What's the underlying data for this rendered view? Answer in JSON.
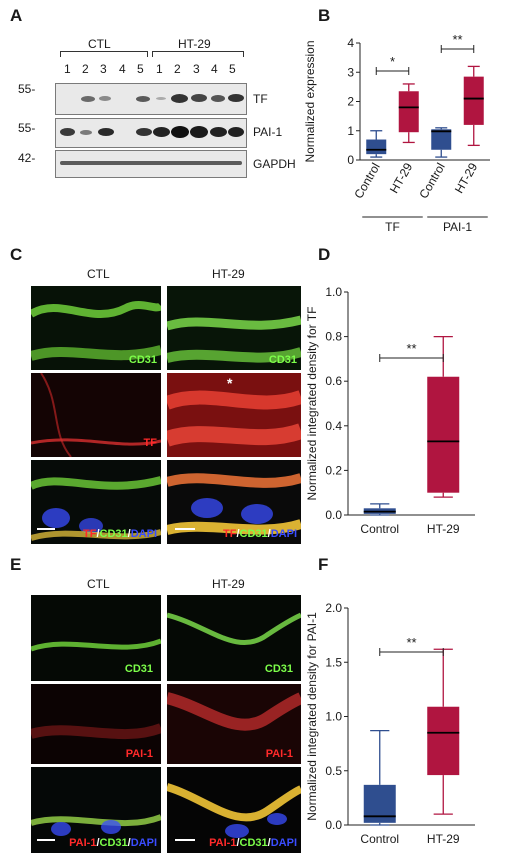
{
  "panels": {
    "A": "A",
    "B": "B",
    "C": "C",
    "D": "D",
    "E": "E",
    "F": "F"
  },
  "blot": {
    "group_ctl": "CTL",
    "group_ht": "HT-29",
    "lanes": [
      "1",
      "2",
      "3",
      "4",
      "5",
      "1",
      "2",
      "3",
      "4",
      "5"
    ],
    "rows": [
      {
        "mw": "55-",
        "label": "TF"
      },
      {
        "mw": "55-",
        "label": "PAI-1"
      },
      {
        "mw": "42-",
        "label": "GAPDH"
      }
    ]
  },
  "micro": {
    "col_ctl": "CTL",
    "col_ht": "HT-29",
    "cd31": "CD31",
    "tf": "TF",
    "merge_tf": [
      "TF",
      "/",
      "CD31",
      "/",
      "DAPI"
    ],
    "pai": "PAI-1",
    "merge_pai": [
      "PAI-1",
      "/",
      "CD31",
      "/",
      "DAPI"
    ],
    "asterisk": "*",
    "colors": {
      "green": "#7dff4a",
      "red": "#ff2a2a",
      "blue": "#3a4dff"
    }
  },
  "chart_data": [
    {
      "type": "box",
      "panel": "B",
      "ylabel": "Normalized expression",
      "ylim": [
        0,
        4
      ],
      "yticks": [
        "0",
        "1",
        "2",
        "3",
        "4"
      ],
      "categories": [
        "Control",
        "HT-29",
        "Control",
        "HT-29"
      ],
      "groups": [
        {
          "name": "TF",
          "span": [
            0,
            1
          ]
        },
        {
          "name": "PAI-1",
          "span": [
            2,
            3
          ]
        }
      ],
      "boxes": [
        {
          "min": 0.1,
          "q1": 0.2,
          "median": 0.35,
          "q3": 0.7,
          "max": 1.0,
          "color": "#2f4e8f"
        },
        {
          "min": 0.6,
          "q1": 0.95,
          "median": 1.8,
          "q3": 2.35,
          "max": 2.6,
          "color": "#b01540"
        },
        {
          "min": 0.1,
          "q1": 0.35,
          "median": 0.98,
          "q3": 1.05,
          "max": 1.1,
          "color": "#2f4e8f"
        },
        {
          "min": 0.5,
          "q1": 1.2,
          "median": 2.1,
          "q3": 2.85,
          "max": 3.2,
          "color": "#b01540"
        }
      ],
      "significance": [
        {
          "from": 0,
          "to": 1,
          "label": "*"
        },
        {
          "from": 2,
          "to": 3,
          "label": "**"
        }
      ]
    },
    {
      "type": "box",
      "panel": "D",
      "ylabel": "Normalized integrated density for TF",
      "ylim": [
        0,
        1.0
      ],
      "yticks": [
        "0.0",
        "0.2",
        "0.4",
        "0.6",
        "0.8",
        "1.0"
      ],
      "categories": [
        "Control",
        "HT-29"
      ],
      "boxes": [
        {
          "min": 0.0,
          "q1": 0.005,
          "median": 0.015,
          "q3": 0.03,
          "max": 0.05,
          "color": "#2f4e8f"
        },
        {
          "min": 0.08,
          "q1": 0.1,
          "median": 0.33,
          "q3": 0.62,
          "max": 0.8,
          "color": "#b01540"
        }
      ],
      "significance": [
        {
          "from": 0,
          "to": 1,
          "label": "**"
        }
      ]
    },
    {
      "type": "box",
      "panel": "F",
      "ylabel": "Normalized integrated density for PAI-1",
      "ylim": [
        0,
        2.0
      ],
      "yticks": [
        "0.0",
        "0.5",
        "1.0",
        "1.5",
        "2.0"
      ],
      "categories": [
        "Control",
        "HT-29"
      ],
      "boxes": [
        {
          "min": 0.0,
          "q1": 0.02,
          "median": 0.08,
          "q3": 0.37,
          "max": 0.87,
          "color": "#2f4e8f"
        },
        {
          "min": 0.1,
          "q1": 0.46,
          "median": 0.85,
          "q3": 1.09,
          "max": 1.62,
          "color": "#b01540"
        }
      ],
      "significance": [
        {
          "from": 0,
          "to": 1,
          "label": "**"
        }
      ]
    }
  ]
}
